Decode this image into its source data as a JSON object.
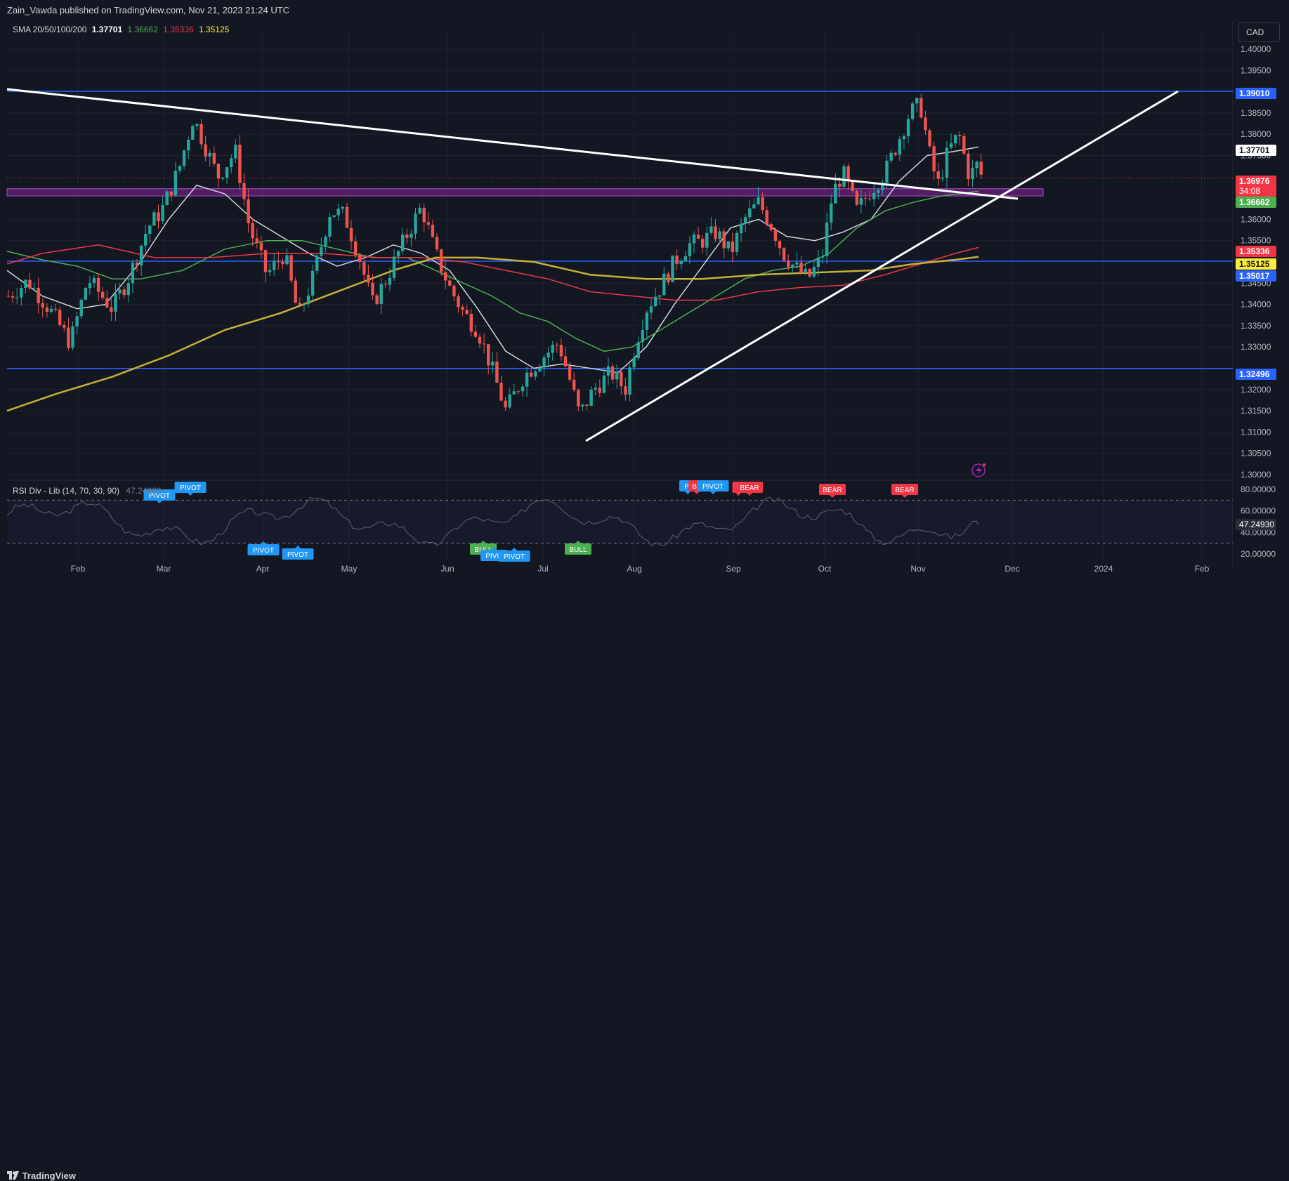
{
  "header": {
    "published_text": "Zain_Vawda published on TradingView.com, Nov 21, 2023 21:24 UTC"
  },
  "legend": {
    "sma_label": "SMA 20/50/100/200",
    "sma20": "1.37701",
    "sma50": "1.36662",
    "sma100": "1.35336",
    "sma200": "1.35125",
    "rsi_label": "RSI Div - Lib (14, 70, 30, 90)",
    "rsi_value": "47.24930"
  },
  "currency_button": "CAD",
  "footer": {
    "brand": "TradingView"
  },
  "colors": {
    "background": "#131722",
    "up": "#26a69a",
    "down": "#ef5350",
    "sma20": "#d1d4dc",
    "sma50": "#4caf50",
    "sma100": "#f23645",
    "sma200": "#c9b037",
    "level_line": "#2962ff",
    "zone": "#9c27b0"
  },
  "chart_data": {
    "type": "candlestick",
    "instrument_currency": "CAD",
    "y_axis": {
      "ticks": [
        "1.40000",
        "1.39500",
        "1.38500",
        "1.38000",
        "1.37500",
        "1.36000",
        "1.35500",
        "1.34500",
        "1.34000",
        "1.33500",
        "1.33000",
        "1.32000",
        "1.31500",
        "1.31000",
        "1.30500",
        "1.30000"
      ],
      "range": [
        1.3,
        1.4
      ],
      "price_tags": [
        {
          "value": "1.39010",
          "color": "#2962ff"
        },
        {
          "value": "1.37701",
          "color": "#ffffff"
        },
        {
          "value": "1.36976",
          "sub": "34:08",
          "color": "#f23645"
        },
        {
          "value": "1.36662",
          "color": "#4caf50"
        },
        {
          "value": "1.35336",
          "color": "#f23645"
        },
        {
          "value": "1.35125",
          "color": "#ffeb3b"
        },
        {
          "value": "1.35017",
          "color": "#2962ff"
        },
        {
          "value": "1.32496",
          "color": "#2962ff"
        }
      ]
    },
    "x_axis": {
      "ticks": [
        "Feb",
        "Mar",
        "Apr",
        "May",
        "Jun",
        "Jul",
        "Aug",
        "Sep",
        "Oct",
        "Nov",
        "Dec",
        "2024",
        "Feb"
      ]
    },
    "horizontal_levels": [
      1.3901,
      1.35017,
      1.32496
    ],
    "zone": [
      1.3655,
      1.3672
    ],
    "trendlines": [
      {
        "name": "descending",
        "from": [
          "early Jan",
          1.3905
        ],
        "to": [
          "late Nov",
          1.367
        ]
      },
      {
        "name": "ascending",
        "from": [
          "mid Jul",
          1.3093
        ],
        "to": [
          "Jan 2024",
          1.3905
        ]
      }
    ],
    "rsi": {
      "ticks": [
        "80.00000",
        "60.00000",
        "40.00000",
        "20.00000"
      ],
      "range": [
        10,
        90
      ],
      "last": 47.2493,
      "levels": [
        70,
        30
      ],
      "markers": [
        "PIVOT",
        "PIVOT",
        "PIVOT",
        "PIVOT",
        "BULL",
        "PIVC",
        "PIVOT",
        "BULL",
        "PI",
        "BE",
        "PIVOT",
        "B",
        "BEAR",
        "BEAR",
        "BEAR"
      ]
    }
  }
}
